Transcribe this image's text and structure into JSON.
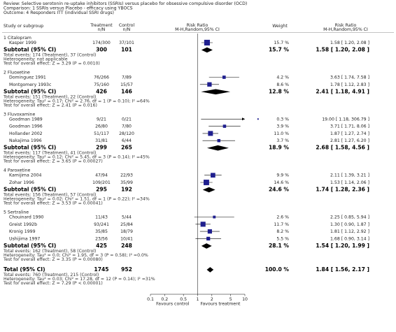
{
  "chart_data": {
    "type": "forest",
    "review": "Review:  Selective serotonin re-uptake inhibitors (SSRIs) versus placebo for obsessive compulsive disorder (OCD)",
    "comparison": "Comparison:  1 SSRIs versus Placebo - efficacy using YBOCS",
    "outcome": "Outcome:  4 Responders ITT (individual SSRI drugs)",
    "headers": {
      "study": "Study or subgroup",
      "treatment": [
        "Treatment",
        "n/N"
      ],
      "control": [
        "Control",
        "n/N"
      ],
      "plot": [
        "Risk Ratio",
        "M-H,Random,95% CI"
      ],
      "weight": "Weight",
      "ci": [
        "Risk Ratio",
        "M-H,Random,95% CI"
      ]
    },
    "box_color": "#1f1f8f",
    "groups": [
      {
        "title": "1 Citalopram",
        "studies": [
          {
            "name": "Kasper 1999",
            "treatment": "174/300",
            "control": "37/101",
            "rr": 1.58,
            "lo": 1.2,
            "hi": 2.08,
            "ci_label": "1.58 [ 1.20, 2.08 ]",
            "weight": 15.7,
            "weight_label": "15.7 %"
          }
        ],
        "subtotal": {
          "label": "Subtotal (95% CI)",
          "treatment": 300,
          "control": 101,
          "rr": 1.58,
          "lo": 1.2,
          "hi": 2.08,
          "ci_label": "1.58 [ 1.20, 2.08 ]",
          "weight": 15.7,
          "weight_label": "15.7 %"
        },
        "notes": [
          "Total events: 174 (Treatment), 37 (Control)",
          "Heterogeneity: not applicable",
          "Test for overall effect: Z = 3.29 (P = 0.0010)"
        ]
      },
      {
        "title": "2 Fluoxetine",
        "studies": [
          {
            "name": "Dominguez 1991",
            "treatment": "76/266",
            "control": "7/89",
            "rr": 3.63,
            "lo": 1.74,
            "hi": 7.58,
            "ci_label": "3.63 [ 1.74, 7.58 ]",
            "weight": 4.2,
            "weight_label": "4.2 %"
          },
          {
            "name": "Montgomery 1993c",
            "treatment": "75/160",
            "control": "15/57",
            "rr": 1.78,
            "lo": 1.12,
            "hi": 2.83,
            "ci_label": "1.78 [ 1.12, 2.83 ]",
            "weight": 8.6,
            "weight_label": "8.6 %"
          }
        ],
        "subtotal": {
          "label": "Subtotal (95% CI)",
          "treatment": 426,
          "control": 146,
          "rr": 2.41,
          "lo": 1.18,
          "hi": 4.91,
          "ci_label": "2.41 [ 1.18, 4.91 ]",
          "weight": 12.8,
          "weight_label": "12.8 %"
        },
        "notes": [
          "Total events: 151 (Treatment), 22 (Control)",
          "Heterogeneity: Tau² = 0.17; Chi² = 2.76, df = 1 (P = 0.10); I² =64%",
          "Test for overall effect: Z = 2.41 (P = 0.016)"
        ]
      },
      {
        "title": "3 Fluvoxamine",
        "studies": [
          {
            "name": "Goodman 1989",
            "treatment": "9/21",
            "control": "0/21",
            "rr": 19.0,
            "lo": 1.18,
            "hi": 306.79,
            "ci_label": "19.00 [ 1.18, 306.79 ]",
            "weight": 0.3,
            "weight_label": "0.3 %"
          },
          {
            "name": "Goodman 1996",
            "treatment": "26/80",
            "control": "7/80",
            "rr": 3.71,
            "lo": 1.71,
            "hi": 8.06,
            "ci_label": "3.71 [ 1.71, 8.06 ]",
            "weight": 3.9,
            "weight_label": "3.9 %"
          },
          {
            "name": "Hollander 2002",
            "treatment": "51/117",
            "control": "28/120",
            "rr": 1.87,
            "lo": 1.27,
            "hi": 2.74,
            "ci_label": "1.87 [ 1.27, 2.74 ]",
            "weight": 11.0,
            "weight_label": "11.0 %"
          },
          {
            "name": "Nakajima 1996",
            "treatment": "31/81",
            "control": "6/44",
            "rr": 2.81,
            "lo": 1.27,
            "hi": 6.2,
            "ci_label": "2.81 [ 1.27, 6.20 ]",
            "weight": 3.7,
            "weight_label": "3.7 %"
          }
        ],
        "subtotal": {
          "label": "Subtotal (95% CI)",
          "treatment": 299,
          "control": 265,
          "rr": 2.68,
          "lo": 1.58,
          "hi": 4.56,
          "ci_label": "2.68 [ 1.58, 4.56 ]",
          "weight": 18.9,
          "weight_label": "18.9 %"
        },
        "notes": [
          "Total events: 117 (Treatment), 41 (Control)",
          "Heterogeneity: Tau² = 0.12; Chi² = 5.45, df = 3 (P = 0.14); I² =45%",
          "Test for overall effect: Z = 3.65 (P = 0.00027)"
        ]
      },
      {
        "title": "4 Paroxetine",
        "studies": [
          {
            "name": "Kamijima 2004",
            "treatment": "47/94",
            "control": "22/93",
            "rr": 2.11,
            "lo": 1.39,
            "hi": 3.21,
            "ci_label": "2.11 [ 1.39, 3.21 ]",
            "weight": 9.9,
            "weight_label": "9.9 %"
          },
          {
            "name": "Zohar 1996",
            "treatment": "109/201",
            "control": "35/99",
            "rr": 1.53,
            "lo": 1.14,
            "hi": 2.06,
            "ci_label": "1.53 [ 1.14, 2.06 ]",
            "weight": 14.6,
            "weight_label": "14.6 %"
          }
        ],
        "subtotal": {
          "label": "Subtotal (95% CI)",
          "treatment": 295,
          "control": 192,
          "rr": 1.74,
          "lo": 1.28,
          "hi": 2.36,
          "ci_label": "1.74 [ 1.28, 2.36 ]",
          "weight": 24.6,
          "weight_label": "24.6 %"
        },
        "notes": [
          "Total events: 156 (Treatment), 57 (Control)",
          "Heterogeneity: Tau² = 0.02; Chi² = 1.51, df = 1 (P = 0.22); I² =34%",
          "Test for overall effect: Z = 3.53 (P = 0.00041)"
        ]
      },
      {
        "title": "5 Sertraline",
        "studies": [
          {
            "name": "Chouinard 1990",
            "treatment": "11/43",
            "control": "5/44",
            "rr": 2.25,
            "lo": 0.85,
            "hi": 5.94,
            "ci_label": "2.25 [ 0.85, 5.94 ]",
            "weight": 2.6,
            "weight_label": "2.6 %"
          },
          {
            "name": "Greist 1992b",
            "treatment": "93/241",
            "control": "25/84",
            "rr": 1.3,
            "lo": 0.9,
            "hi": 1.87,
            "ci_label": "1.30 [ 0.90, 1.87 ]",
            "weight": 11.7,
            "weight_label": "11.7 %"
          },
          {
            "name": "Kronig 1999",
            "treatment": "35/85",
            "control": "18/79",
            "rr": 1.81,
            "lo": 1.12,
            "hi": 2.92,
            "ci_label": "1.81 [ 1.12, 2.92 ]",
            "weight": 8.2,
            "weight_label": "8.2 %"
          },
          {
            "name": "Ushijima 1997",
            "treatment": "23/56",
            "control": "10/41",
            "rr": 1.68,
            "lo": 0.9,
            "hi": 3.14,
            "ci_label": "1.68 [ 0.90, 3.14 ]",
            "weight": 5.5,
            "weight_label": "5.5 %"
          }
        ],
        "subtotal": {
          "label": "Subtotal (95% CI)",
          "treatment": 425,
          "control": 248,
          "rr": 1.54,
          "lo": 1.2,
          "hi": 1.99,
          "ci_label": "1.54 [ 1.20, 1.99 ]",
          "weight": 28.1,
          "weight_label": "28.1 %"
        },
        "notes": [
          "Total events: 162 (Treatment), 58 (Control)",
          "Heterogeneity: Tau² = 0.0; Chi² = 1.95, df = 3 (P = 0.58); I² =0.0%",
          "Test for overall effect: Z = 3.35 (P = 0.00080)"
        ]
      }
    ],
    "total": {
      "label": "Total (95% CI)",
      "treatment": 1745,
      "control": 952,
      "rr": 1.84,
      "lo": 1.56,
      "hi": 2.17,
      "ci_label": "1.84 [ 1.56, 2.17 ]",
      "weight": 100.0,
      "weight_label": "100.0 %",
      "notes": [
        "Total events: 760 (Treatment), 215 (Control)",
        "Heterogeneity: Tau² = 0.03; Chi² = 17.28, df = 12 (P = 0.14); I² =31%",
        "Test for overall effect: Z = 7.29 (P < 0.00001)"
      ]
    },
    "log_scale": true,
    "xlim": [
      0.1,
      10
    ],
    "xticks": [
      0.1,
      0.2,
      0.5,
      1,
      2,
      5,
      10
    ],
    "x_null": 1,
    "favours_left": "Favours control",
    "favours_right": "Favours treatment"
  }
}
